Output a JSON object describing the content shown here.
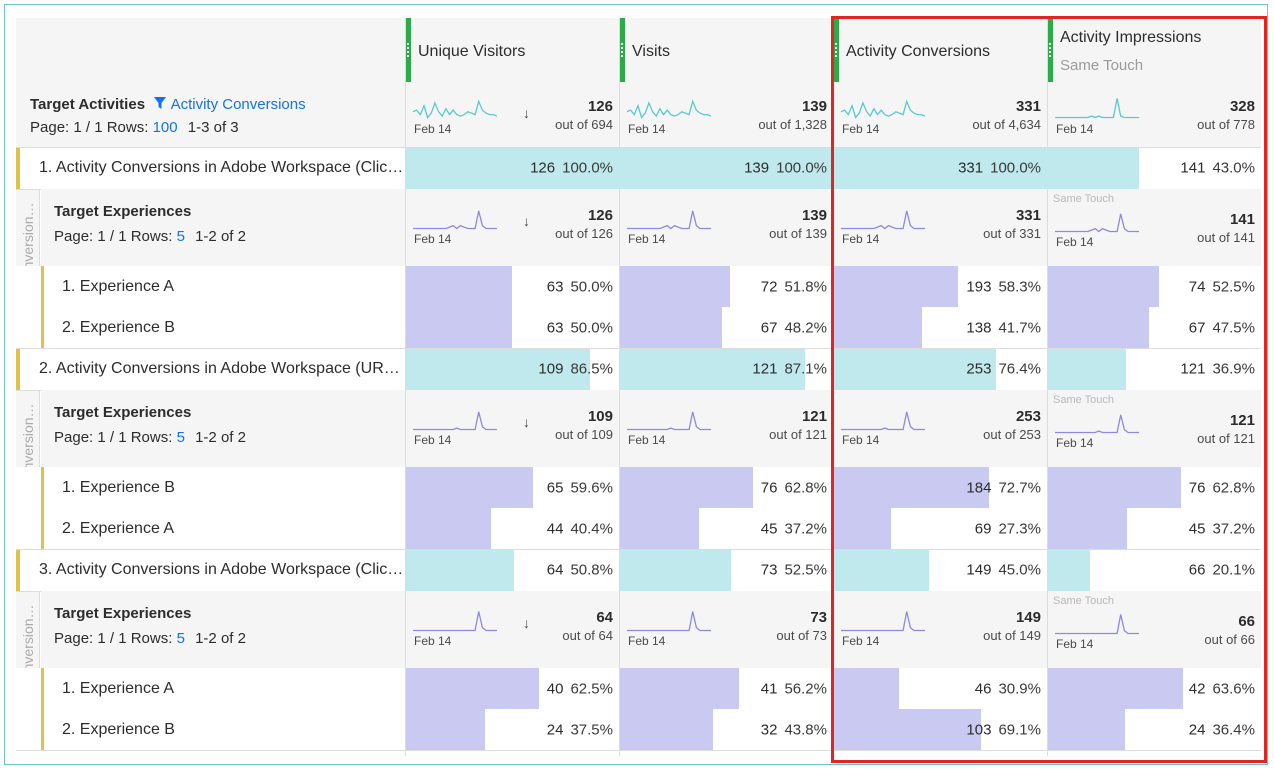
{
  "columns": [
    {
      "title": "Unique Visitors",
      "subtitle": ""
    },
    {
      "title": "Visits",
      "subtitle": ""
    },
    {
      "title": "Activity Conversions",
      "subtitle": ""
    },
    {
      "title": "Activity Impressions",
      "subtitle": "Same Touch"
    }
  ],
  "top_summary": {
    "title": "Target Activities",
    "filter_label": "Activity Conversions",
    "pager_prefix": "Page: 1 / 1  Rows:",
    "rows_count": "100",
    "range": "1-3 of 3",
    "date": "Feb 14",
    "totals": [
      {
        "num": "126",
        "of": "out of 694"
      },
      {
        "num": "139",
        "of": "out of 1,328"
      },
      {
        "num": "331",
        "of": "out of 4,634"
      },
      {
        "num": "328",
        "of": "out of 778"
      }
    ]
  },
  "sort_arrow": "↓",
  "breakdown_tab_label": "Activity Conversion…",
  "same_touch_label": "Same Touch",
  "activities": [
    {
      "label": "1. Activity Conversions in Adobe Workspace (Clic…",
      "values": [
        {
          "v": "126",
          "p": "100.0%",
          "frac": 1.0
        },
        {
          "v": "139",
          "p": "100.0%",
          "frac": 1.0
        },
        {
          "v": "331",
          "p": "100.0%",
          "frac": 1.0
        },
        {
          "v": "141",
          "p": "43.0%",
          "frac": 0.43
        }
      ],
      "breakdown": {
        "title": "Target Experiences",
        "pager_prefix": "Page: 1 / 1  Rows:",
        "rows_count": "5",
        "range": "1-2 of 2",
        "date": "Feb 14",
        "totals": [
          {
            "num": "126",
            "of": "out of 126"
          },
          {
            "num": "139",
            "of": "out of 139"
          },
          {
            "num": "331",
            "of": "out of 331"
          },
          {
            "num": "141",
            "of": "out of 141"
          }
        ],
        "items": [
          {
            "label": "1. Experience A",
            "values": [
              {
                "v": "63",
                "p": "50.0%",
                "frac": 0.5
              },
              {
                "v": "72",
                "p": "51.8%",
                "frac": 0.518
              },
              {
                "v": "193",
                "p": "58.3%",
                "frac": 0.583
              },
              {
                "v": "74",
                "p": "52.5%",
                "frac": 0.525
              }
            ]
          },
          {
            "label": "2. Experience B",
            "values": [
              {
                "v": "63",
                "p": "50.0%",
                "frac": 0.5
              },
              {
                "v": "67",
                "p": "48.2%",
                "frac": 0.482
              },
              {
                "v": "138",
                "p": "41.7%",
                "frac": 0.417
              },
              {
                "v": "67",
                "p": "47.5%",
                "frac": 0.475
              }
            ]
          }
        ]
      }
    },
    {
      "label": "2. Activity Conversions in Adobe Workspace (UR…",
      "values": [
        {
          "v": "109",
          "p": "86.5%",
          "frac": 0.865
        },
        {
          "v": "121",
          "p": "87.1%",
          "frac": 0.871
        },
        {
          "v": "253",
          "p": "76.4%",
          "frac": 0.764
        },
        {
          "v": "121",
          "p": "36.9%",
          "frac": 0.369
        }
      ],
      "breakdown": {
        "title": "Target Experiences",
        "pager_prefix": "Page: 1 / 1  Rows:",
        "rows_count": "5",
        "range": "1-2 of 2",
        "date": "Feb 14",
        "totals": [
          {
            "num": "109",
            "of": "out of 109"
          },
          {
            "num": "121",
            "of": "out of 121"
          },
          {
            "num": "253",
            "of": "out of 253"
          },
          {
            "num": "121",
            "of": "out of 121"
          }
        ],
        "items": [
          {
            "label": "1. Experience B",
            "values": [
              {
                "v": "65",
                "p": "59.6%",
                "frac": 0.596
              },
              {
                "v": "76",
                "p": "62.8%",
                "frac": 0.628
              },
              {
                "v": "184",
                "p": "72.7%",
                "frac": 0.727
              },
              {
                "v": "76",
                "p": "62.8%",
                "frac": 0.628
              }
            ]
          },
          {
            "label": "2. Experience A",
            "values": [
              {
                "v": "44",
                "p": "40.4%",
                "frac": 0.404
              },
              {
                "v": "45",
                "p": "37.2%",
                "frac": 0.372
              },
              {
                "v": "69",
                "p": "27.3%",
                "frac": 0.273
              },
              {
                "v": "45",
                "p": "37.2%",
                "frac": 0.372
              }
            ]
          }
        ]
      }
    },
    {
      "label": "3. Activity Conversions in Adobe Workspace (Clic…",
      "values": [
        {
          "v": "64",
          "p": "50.8%",
          "frac": 0.508
        },
        {
          "v": "73",
          "p": "52.5%",
          "frac": 0.525
        },
        {
          "v": "149",
          "p": "45.0%",
          "frac": 0.45
        },
        {
          "v": "66",
          "p": "20.1%",
          "frac": 0.201
        }
      ],
      "breakdown": {
        "title": "Target Experiences",
        "pager_prefix": "Page: 1 / 1  Rows:",
        "rows_count": "5",
        "range": "1-2 of 2",
        "date": "Feb 14",
        "totals": [
          {
            "num": "64",
            "of": "out of 64"
          },
          {
            "num": "73",
            "of": "out of 73"
          },
          {
            "num": "149",
            "of": "out of 149"
          },
          {
            "num": "66",
            "of": "out of 66"
          }
        ],
        "items": [
          {
            "label": "1. Experience A",
            "values": [
              {
                "v": "40",
                "p": "62.5%",
                "frac": 0.625
              },
              {
                "v": "41",
                "p": "56.2%",
                "frac": 0.562
              },
              {
                "v": "46",
                "p": "30.9%",
                "frac": 0.309
              },
              {
                "v": "42",
                "p": "63.6%",
                "frac": 0.636
              }
            ]
          },
          {
            "label": "2. Experience B",
            "values": [
              {
                "v": "24",
                "p": "37.5%",
                "frac": 0.375
              },
              {
                "v": "32",
                "p": "43.8%",
                "frac": 0.438
              },
              {
                "v": "103",
                "p": "69.1%",
                "frac": 0.691
              },
              {
                "v": "24",
                "p": "36.4%",
                "frac": 0.364
              }
            ]
          }
        ]
      }
    }
  ],
  "colors": {
    "teal_bar": "#bfe9ec",
    "lavender_bar": "#cac9f1",
    "teal_spark": "#5cc8cf",
    "lavender_spark": "#8c8ae0",
    "column_grip": "#2daa4a",
    "row_accent": "#e0c248",
    "link_blue": "#1473e6",
    "highlight_border": "#e02525"
  },
  "icons": {
    "filter": "funnel-icon",
    "sort": "sort-descending-icon",
    "grip": "drag-handle-icon"
  }
}
